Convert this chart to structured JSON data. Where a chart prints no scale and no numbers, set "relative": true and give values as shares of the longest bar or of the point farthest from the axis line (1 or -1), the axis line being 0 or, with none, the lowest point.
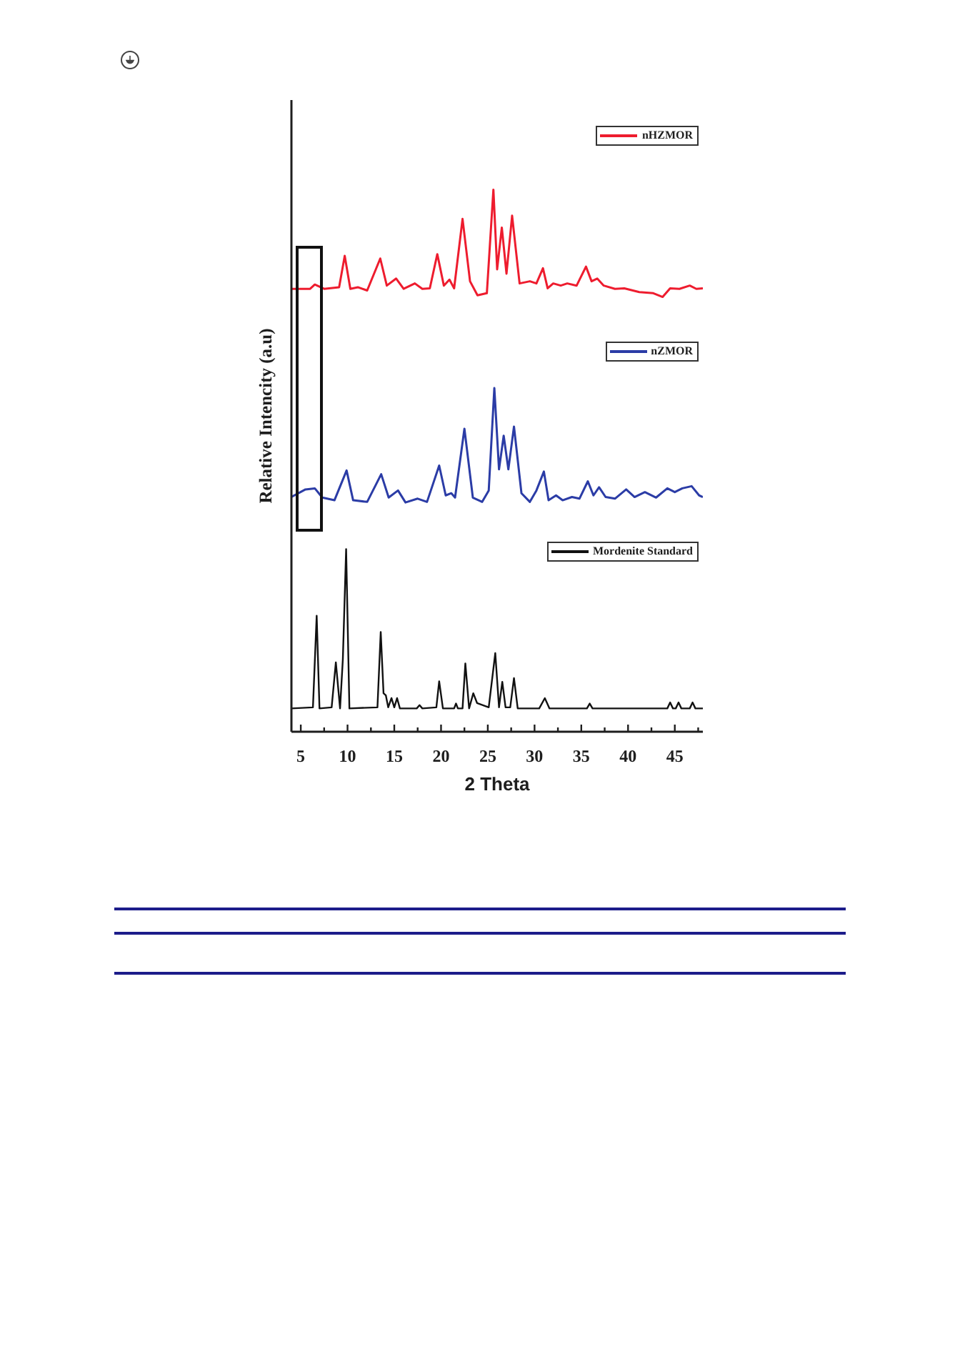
{
  "chart_data": {
    "type": "line",
    "xlabel": "2 Theta",
    "ylabel": "Relative Intencity (a.u)",
    "relative": true,
    "tick_labels": "x",
    "legend": "right",
    "marker": "none",
    "xlim": [
      4,
      48
    ],
    "xticks": [
      5,
      {
        "value": 7.5,
        "label": null
      },
      10,
      {
        "value": 12.5,
        "label": null
      },
      15,
      {
        "value": 17.5,
        "label": null
      },
      20,
      {
        "value": 22.5,
        "label": null
      },
      25,
      {
        "value": 27.5,
        "label": null
      },
      30,
      {
        "value": 32.5,
        "label": null
      },
      35,
      {
        "value": 37.5,
        "label": null
      },
      40,
      {
        "value": 42.5,
        "label": null
      },
      45,
      {
        "value": 47.5,
        "label": null
      }
    ],
    "series": [
      {
        "name": "nHZMOR",
        "color": "#ee1c2e",
        "x": [
          4,
          6.0,
          6.5,
          7.5,
          9.1,
          9.7,
          10.3,
          11.1,
          12.1,
          13.5,
          14.2,
          15.2,
          16.0,
          17.2,
          18.0,
          18.8,
          19.6,
          20.3,
          20.9,
          21.4,
          22.3,
          23.1,
          23.9,
          24.9,
          25.6,
          26.0,
          26.5,
          27.0,
          27.6,
          28.4,
          29.5,
          30.2,
          30.9,
          31.4,
          32.0,
          32.8,
          33.5,
          34.5,
          35.5,
          36.1,
          36.7,
          37.4,
          38.6,
          39.6,
          41.2,
          42.7,
          43.7,
          44.5,
          45.5,
          46.6,
          47.3,
          48
        ],
        "values": [
          0.817,
          0.817,
          0.825,
          0.817,
          0.82,
          0.878,
          0.817,
          0.82,
          0.814,
          0.873,
          0.823,
          0.836,
          0.817,
          0.827,
          0.817,
          0.818,
          0.881,
          0.823,
          0.834,
          0.818,
          0.946,
          0.831,
          0.805,
          0.809,
          1.0,
          0.853,
          0.93,
          0.845,
          0.952,
          0.827,
          0.831,
          0.827,
          0.855,
          0.818,
          0.827,
          0.823,
          0.827,
          0.823,
          0.858,
          0.831,
          0.836,
          0.823,
          0.817,
          0.818,
          0.811,
          0.809,
          0.802,
          0.818,
          0.817,
          0.823,
          0.817,
          0.818
        ]
      },
      {
        "name": "nZMOR",
        "color": "#2b3ca6",
        "x": [
          4,
          5.5,
          6.5,
          7.3,
          8.6,
          9.9,
          10.6,
          12.1,
          13.6,
          14.4,
          15.4,
          16.2,
          17.5,
          18.5,
          19.8,
          20.5,
          21.1,
          21.5,
          22.5,
          23.4,
          24.4,
          25.1,
          25.7,
          26.2,
          26.7,
          27.2,
          27.8,
          28.6,
          29.5,
          30.2,
          31.0,
          31.5,
          32.3,
          33.0,
          34.0,
          34.8,
          35.7,
          36.3,
          36.9,
          37.6,
          38.6,
          39.8,
          40.7,
          41.8,
          43.0,
          44.2,
          45.0,
          45.8,
          46.8,
          47.6,
          48
        ],
        "values": [
          0.433,
          0.447,
          0.449,
          0.432,
          0.427,
          0.482,
          0.427,
          0.424,
          0.475,
          0.432,
          0.445,
          0.423,
          0.43,
          0.424,
          0.491,
          0.436,
          0.44,
          0.432,
          0.559,
          0.432,
          0.424,
          0.445,
          0.634,
          0.484,
          0.546,
          0.484,
          0.563,
          0.44,
          0.424,
          0.445,
          0.48,
          0.427,
          0.436,
          0.427,
          0.433,
          0.43,
          0.462,
          0.436,
          0.451,
          0.433,
          0.43,
          0.447,
          0.433,
          0.442,
          0.432,
          0.449,
          0.442,
          0.449,
          0.453,
          0.436,
          0.433
        ]
      },
      {
        "name": "Mordenite Standard",
        "color": "#111111",
        "x": [
          4,
          6.3,
          6.7,
          7.0,
          8.3,
          8.75,
          9.2,
          9.5,
          9.85,
          10.2,
          13.2,
          13.55,
          13.85,
          14.1,
          14.35,
          14.7,
          15.0,
          15.3,
          15.6,
          17.4,
          17.7,
          18.0,
          19.5,
          19.8,
          20.2,
          21.4,
          21.6,
          21.8,
          22.3,
          22.6,
          23.0,
          23.45,
          23.85,
          25.1,
          25.8,
          26.2,
          26.55,
          26.9,
          27.4,
          27.8,
          28.2,
          30.5,
          31.1,
          31.6,
          35.6,
          35.9,
          36.2,
          44.2,
          44.5,
          44.8,
          45.1,
          45.4,
          45.7,
          46.6,
          46.9,
          47.2,
          48
        ],
        "values": [
          0.043,
          0.045,
          0.214,
          0.043,
          0.045,
          0.128,
          0.043,
          0.134,
          0.337,
          0.043,
          0.045,
          0.184,
          0.071,
          0.067,
          0.045,
          0.062,
          0.045,
          0.062,
          0.043,
          0.043,
          0.049,
          0.043,
          0.045,
          0.093,
          0.043,
          0.043,
          0.052,
          0.043,
          0.043,
          0.126,
          0.043,
          0.071,
          0.053,
          0.045,
          0.145,
          0.045,
          0.092,
          0.045,
          0.045,
          0.099,
          0.043,
          0.043,
          0.062,
          0.043,
          0.043,
          0.052,
          0.043,
          0.043,
          0.054,
          0.043,
          0.043,
          0.054,
          0.043,
          0.043,
          0.054,
          0.043,
          0.043
        ]
      }
    ]
  }
}
